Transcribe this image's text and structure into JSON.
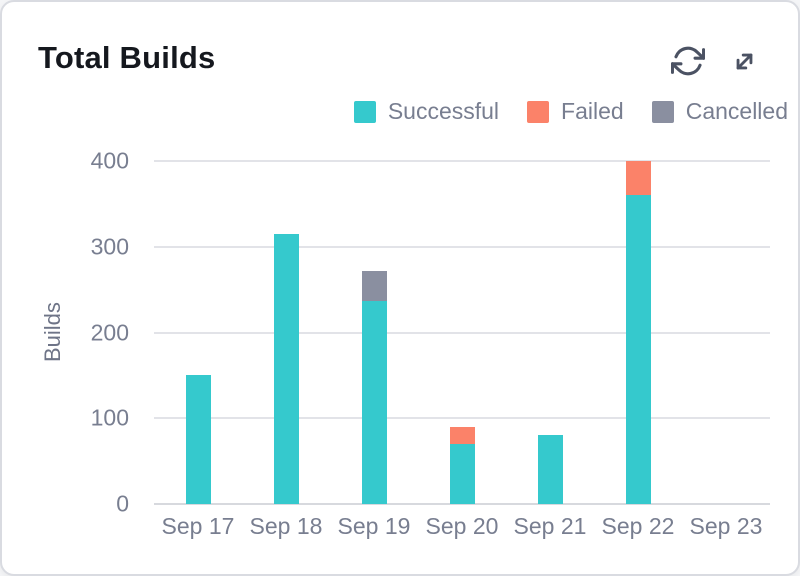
{
  "header": {
    "title": "Total Builds",
    "actions": [
      {
        "name": "refresh",
        "icon": "refresh-icon"
      },
      {
        "name": "expand",
        "icon": "expand-icon"
      }
    ]
  },
  "chart_data": {
    "type": "bar",
    "stacked": true,
    "title": "Total Builds",
    "categories": [
      "Sep 17",
      "Sep 18",
      "Sep 19",
      "Sep 20",
      "Sep 21",
      "Sep 22",
      "Sep 23"
    ],
    "series": [
      {
        "name": "Successful",
        "color": "#35C9CD",
        "values": [
          150,
          315,
          237,
          70,
          81,
          360,
          0
        ]
      },
      {
        "name": "Failed",
        "color": "#FB8269",
        "values": [
          0,
          0,
          0,
          20,
          0,
          40,
          0
        ]
      },
      {
        "name": "Cancelled",
        "color": "#8A8FA0",
        "values": [
          0,
          0,
          35,
          0,
          0,
          0,
          0
        ]
      }
    ],
    "xlabel": "",
    "ylabel": "Builds",
    "ylim": [
      0,
      400
    ],
    "y_ticks": [
      400,
      300,
      200,
      100,
      0
    ],
    "grid": true,
    "legend_position": "top-right"
  },
  "colors": {
    "card_background": "#FFFFFF",
    "card_border": "#D9DBE1",
    "title_text": "#15181E",
    "axis_text": "#787E90",
    "gridline": "#E2E3E8",
    "baseline": "#D7D9DE",
    "icon": "#4B5263",
    "successful": "#35C9CD",
    "failed": "#FB8269",
    "cancelled": "#8A8FA0"
  }
}
